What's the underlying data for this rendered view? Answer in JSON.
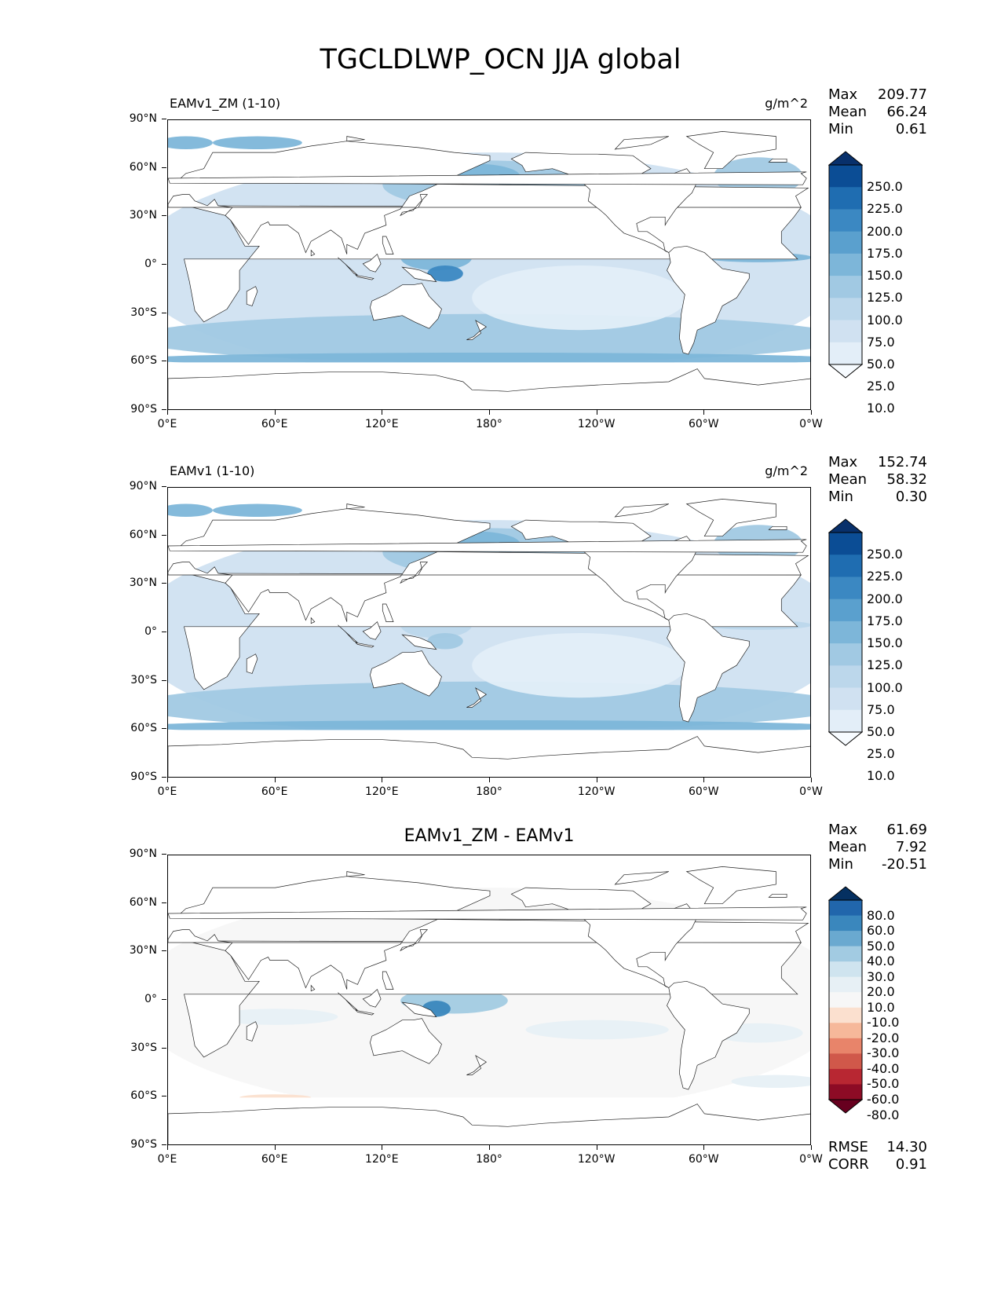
{
  "title": "TGCLDLWP_OCN JJA global",
  "axes": {
    "lat_ticks": [
      "90°N",
      "60°N",
      "30°N",
      "0°",
      "30°S",
      "60°S",
      "90°S"
    ],
    "lon_ticks": [
      "0°E",
      "60°E",
      "120°E",
      "180°",
      "120°W",
      "60°W",
      "0°W"
    ]
  },
  "panels": [
    {
      "title_left": "EAMv1_ZM (1-10)",
      "units": "g/m^2",
      "stats": [
        {
          "label": "Max",
          "value": "209.77"
        },
        {
          "label": "Mean",
          "value": "66.24"
        },
        {
          "label": "Min",
          "value": "0.61"
        }
      ],
      "colorbar": {
        "labels": [
          "250.0",
          "225.0",
          "200.0",
          "175.0",
          "150.0",
          "125.0",
          "100.0",
          "75.0",
          "50.0",
          "25.0",
          "10.0"
        ],
        "colors": [
          "#08306b",
          "#0b4d95",
          "#1f6db1",
          "#3b88c2",
          "#5aa0ce",
          "#7db6d9",
          "#a1c9e3",
          "#bcd7eb",
          "#d0e1f1",
          "#e3eef8",
          "#f7fbff"
        ]
      }
    },
    {
      "title_left": "EAMv1 (1-10)",
      "units": "g/m^2",
      "stats": [
        {
          "label": "Max",
          "value": "152.74"
        },
        {
          "label": "Mean",
          "value": "58.32"
        },
        {
          "label": "Min",
          "value": "0.30"
        }
      ],
      "colorbar": {
        "labels": [
          "250.0",
          "225.0",
          "200.0",
          "175.0",
          "150.0",
          "125.0",
          "100.0",
          "75.0",
          "50.0",
          "25.0",
          "10.0"
        ],
        "colors": [
          "#08306b",
          "#0b4d95",
          "#1f6db1",
          "#3b88c2",
          "#5aa0ce",
          "#7db6d9",
          "#a1c9e3",
          "#bcd7eb",
          "#d0e1f1",
          "#e3eef8",
          "#f7fbff"
        ]
      }
    },
    {
      "title_center": "EAMv1_ZM - EAMv1",
      "stats": [
        {
          "label": "Max",
          "value": "61.69"
        },
        {
          "label": "Mean",
          "value": "7.92"
        },
        {
          "label": "Min",
          "value": "-20.51"
        }
      ],
      "colorbar": {
        "labels": [
          "80.0",
          "60.0",
          "50.0",
          "40.0",
          "30.0",
          "20.0",
          "10.0",
          "-10.0",
          "-20.0",
          "-30.0",
          "-40.0",
          "-50.0",
          "-60.0",
          "-80.0"
        ],
        "colors": [
          "#053061",
          "#2166ac",
          "#3a87bd",
          "#6aa9d0",
          "#a2cbe2",
          "#cfe4ef",
          "#e7f0f5",
          "#f7f7f7",
          "#fbe0cf",
          "#f6b89a",
          "#e8846a",
          "#d0584a",
          "#b82732",
          "#8d0b25",
          "#67001f"
        ]
      },
      "metrics": [
        {
          "label": "RMSE",
          "value": "14.30"
        },
        {
          "label": "CORR",
          "value": "0.91"
        }
      ]
    }
  ]
}
